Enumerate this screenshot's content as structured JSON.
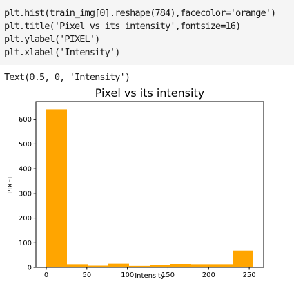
{
  "code_cell": {
    "lines": [
      "plt.hist(train_img[0].reshape(784),facecolor='orange')",
      "plt.title('Pixel vs its intensity',fontsize=16)",
      "plt.ylabel('PIXEL')",
      "plt.xlabel('Intensity')"
    ]
  },
  "output": {
    "text": "Text(0.5, 0, 'Intensity')"
  },
  "chart_data": {
    "type": "bar",
    "title": "Pixel vs its intensity",
    "xlabel": "Intensity",
    "ylabel": "PIXEL",
    "bar_color": "#ffa500",
    "bin_edges": [
      0,
      25.5,
      51,
      76.5,
      102,
      127.5,
      153,
      178.5,
      204,
      229.5,
      255
    ],
    "values": [
      640,
      13,
      7,
      15,
      6,
      9,
      14,
      13,
      13,
      68
    ],
    "xlim": [
      -12.75,
      267.75
    ],
    "ylim": [
      0,
      672
    ],
    "xticks": [
      0,
      50,
      100,
      150,
      200,
      250
    ],
    "yticks": [
      0,
      100,
      200,
      300,
      400,
      500,
      600
    ],
    "grid": false
  }
}
